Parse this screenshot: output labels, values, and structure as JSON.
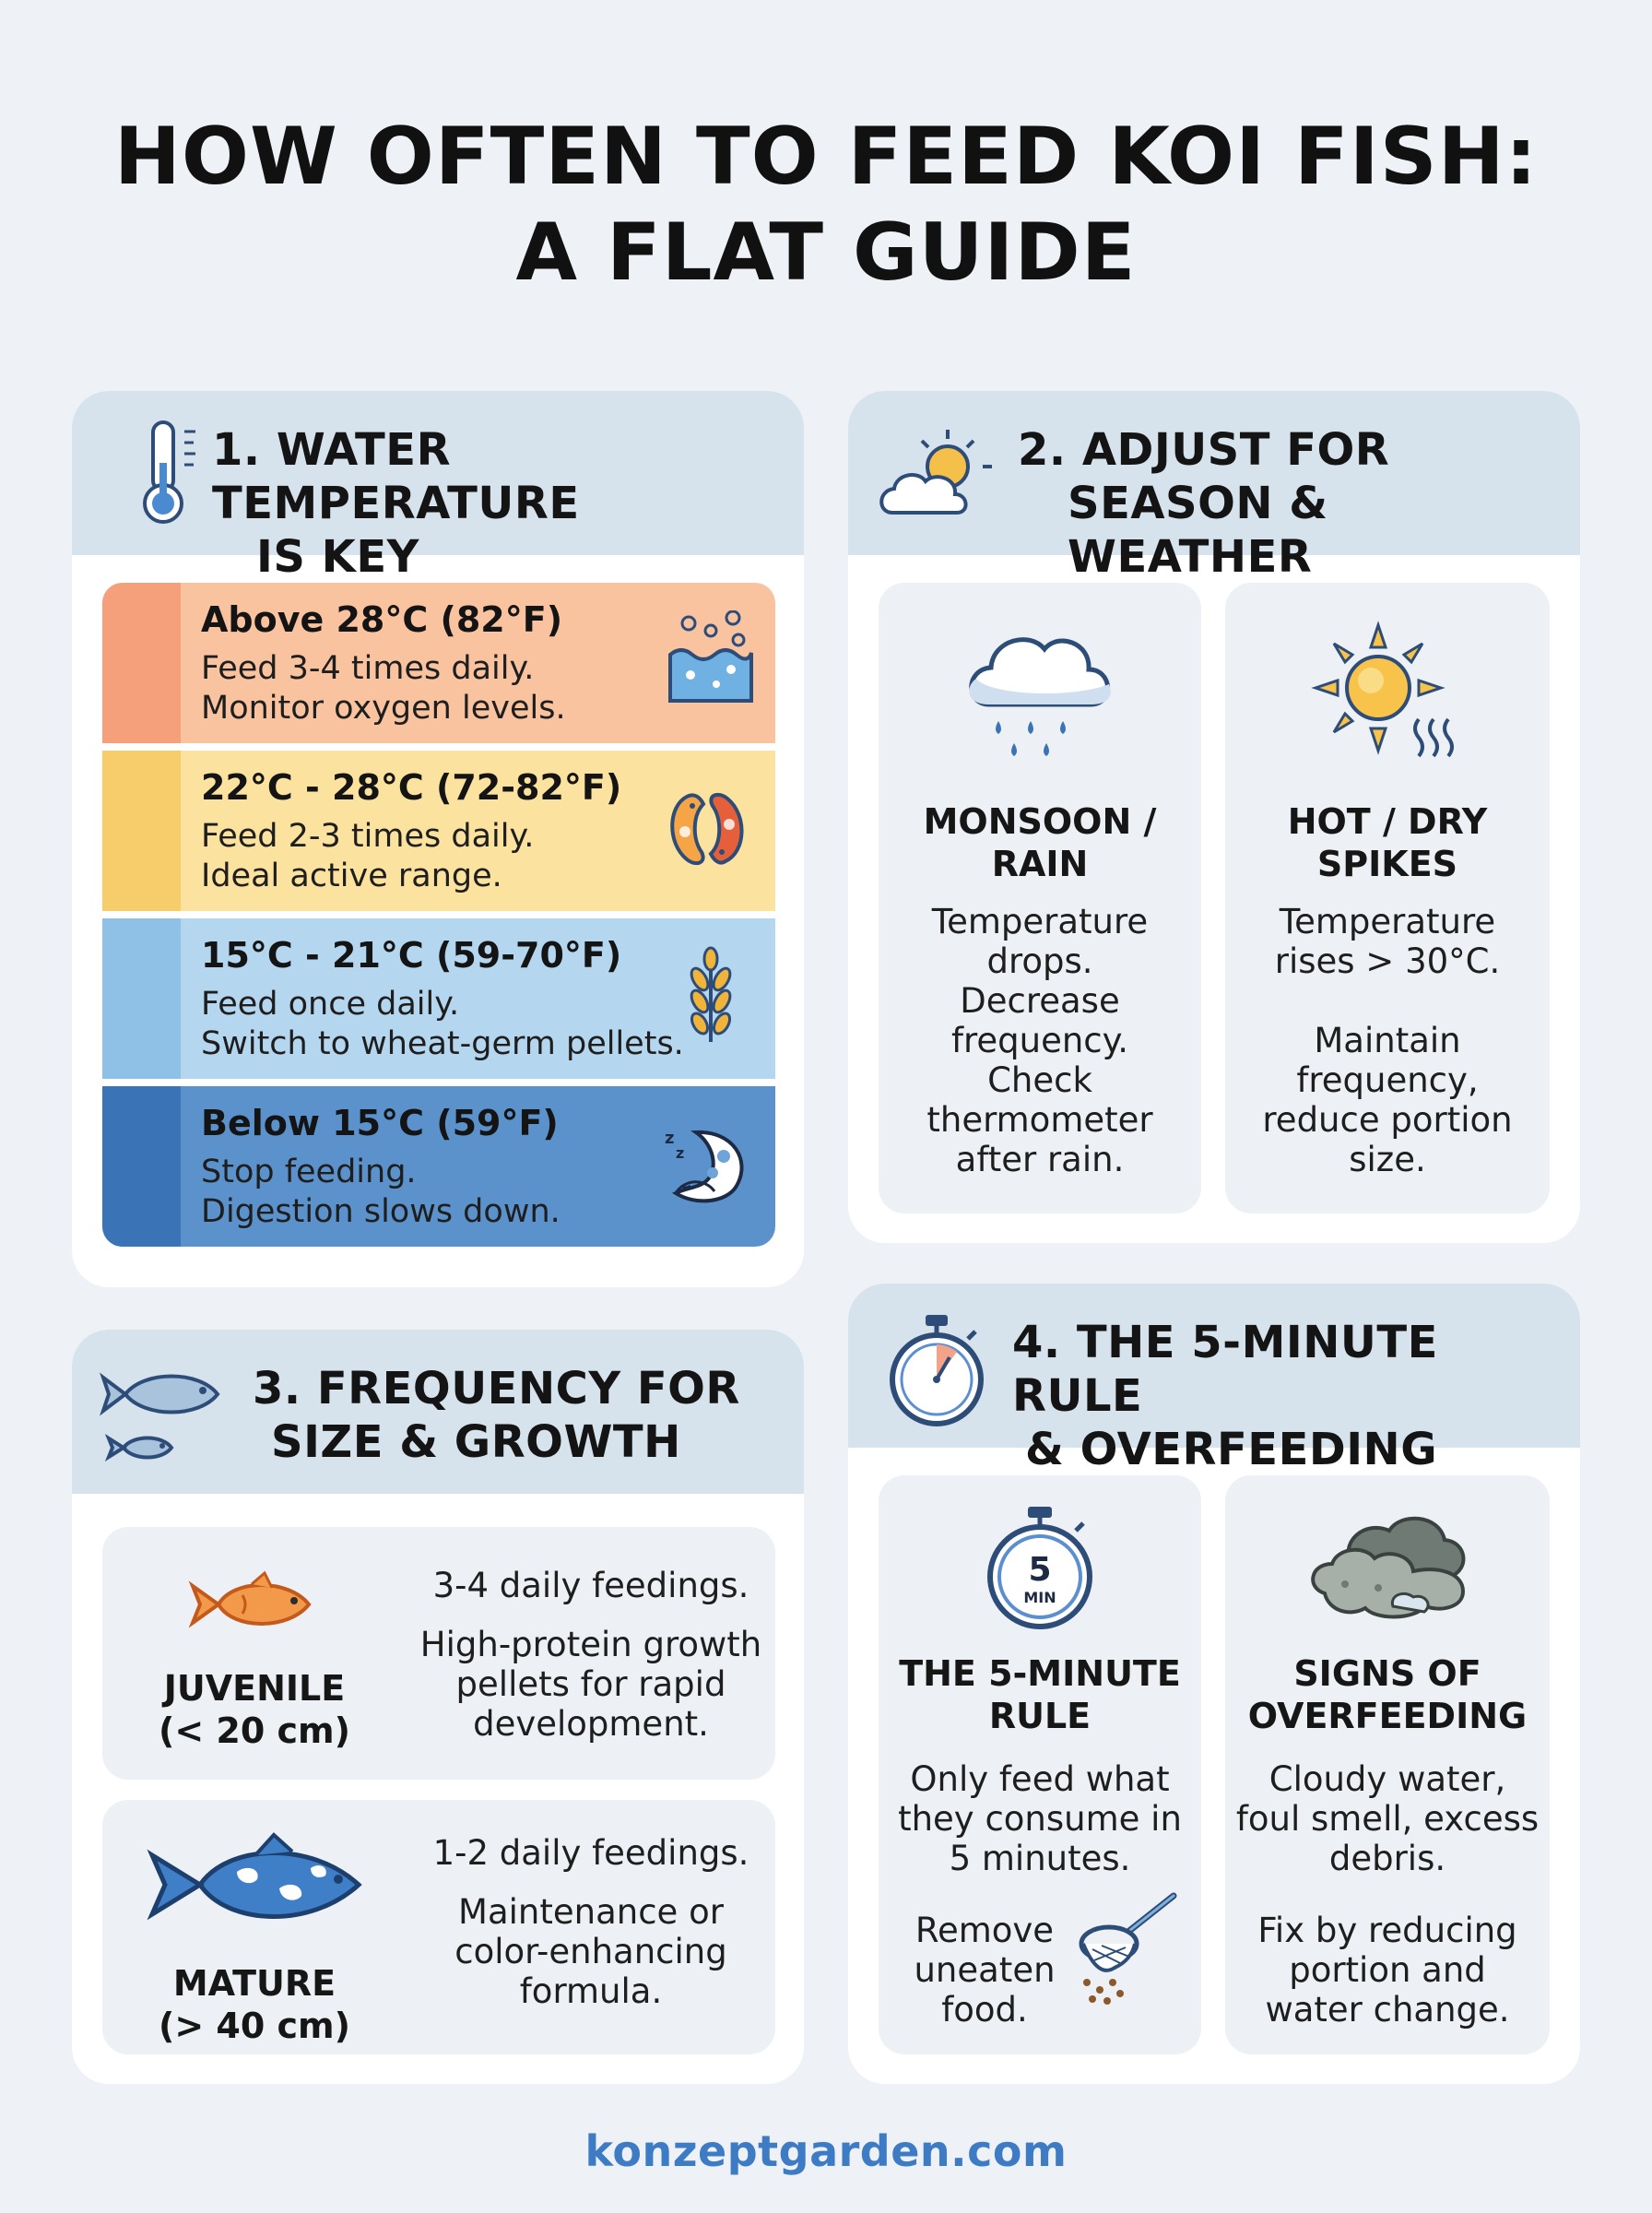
{
  "title": {
    "line1": "HOW OFTEN TO FEED KOI FISH:",
    "line2": "A FLAT GUIDE"
  },
  "section1": {
    "heading_line1": "1. WATER TEMPERATURE",
    "heading_line2": "IS KEY",
    "icon": "thermometer-icon",
    "rows": [
      {
        "range": "Above 28°C (82°F)",
        "line1": "Feed 3-4 times daily.",
        "line2": "Monitor oxygen levels.",
        "icon": "bubbles-icon",
        "bg": "#f9c3a0",
        "strip": "#f5a07a"
      },
      {
        "range": "22°C - 28°C (72-82°F)",
        "line1": "Feed 2-3 times daily.",
        "line2": "Ideal active range.",
        "icon": "koi-pair-icon",
        "bg": "#fbe29f",
        "strip": "#f6cd6a"
      },
      {
        "range": "15°C - 21°C (59-70°F)",
        "line1": "Feed once daily.",
        "line2": "Switch to wheat-germ pellets.",
        "icon": "wheat-icon",
        "bg": "#b5d6ef",
        "strip": "#8fc0e6"
      },
      {
        "range": "Below 15°C (59°F)",
        "line1": "Stop feeding.",
        "line2": "Digestion slows down.",
        "icon": "sleeping-fish-icon",
        "bg": "#5b92cc",
        "strip": "#3a74b6"
      }
    ]
  },
  "section2": {
    "heading_line1": "2. ADJUST FOR",
    "heading_line2": "SEASON & WEATHER",
    "icon": "sun-cloud-icon",
    "panels": [
      {
        "title_line1": "MONSOON /",
        "title_line2": "RAIN",
        "icon": "rain-cloud-icon",
        "text": [
          "Temperature",
          "drops.",
          "Decrease",
          "frequency.",
          "Check",
          "thermometer",
          "after rain."
        ]
      },
      {
        "title_line1": "HOT / DRY",
        "title_line2": "SPIKES",
        "icon": "hot-sun-icon",
        "text": [
          "Temperature",
          "rises > 30°C.",
          "",
          "Maintain",
          "frequency,",
          "reduce portion",
          "size."
        ]
      }
    ]
  },
  "section3": {
    "heading_line1": "3. FREQUENCY FOR",
    "heading_line2": "SIZE & GROWTH",
    "icon": "fish-pair-icon",
    "rows": [
      {
        "label_line1": "JUVENILE",
        "label_line2": "(< 20 cm)",
        "icon": "orange-fish-icon",
        "freq": "3-4 daily feedings.",
        "detail": [
          "High-protein growth",
          "pellets for rapid",
          "development."
        ]
      },
      {
        "label_line1": "MATURE",
        "label_line2": "(> 40 cm)",
        "icon": "blue-koi-icon",
        "freq": "1-2 daily feedings.",
        "detail": [
          "Maintenance or",
          "color-enhancing",
          "formula."
        ]
      }
    ]
  },
  "section4": {
    "heading_line1": "4. THE 5-MINUTE RULE",
    "heading_line2": "& OVERFEEDING",
    "icon": "stopwatch-icon",
    "panels": [
      {
        "title_line1": "THE 5-MINUTE",
        "title_line2": "RULE",
        "icon": "timer-5min-icon",
        "timer_number": "5",
        "timer_unit": "MIN",
        "text": [
          "Only feed what",
          "they consume in",
          "5 minutes."
        ],
        "extra": [
          "Remove",
          "uneaten",
          "food."
        ],
        "extra_icon": "net-icon"
      },
      {
        "title_line1": "SIGNS OF",
        "title_line2": "OVERFEEDING",
        "icon": "murky-water-icon",
        "text": [
          "Cloudy water,",
          "foul smell, excess",
          "debris."
        ],
        "extra": [
          "Fix by reducing",
          "portion and",
          "water change."
        ]
      }
    ]
  },
  "footer": "konzeptgarden.com"
}
